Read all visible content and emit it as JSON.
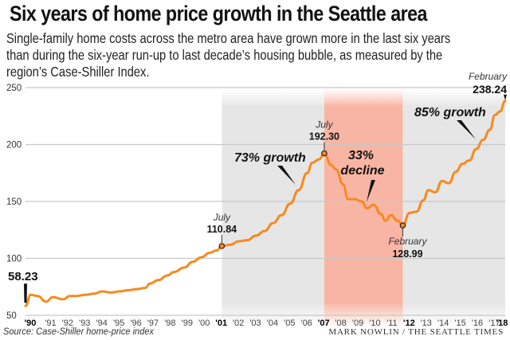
{
  "header": {
    "title": "Six years of home price growth in the Seattle area",
    "subtitle": "Single-family home costs across the metro area have grown more in the last six years than during the six-year run-up to last decade’s housing bubble, as measured by the region’s Case-Shiller Index."
  },
  "footer": {
    "source": "Source: Case-Shiller home-price index",
    "credit": "MARK NOWLIN / THE SEATTLE TIMES"
  },
  "colors": {
    "line": "#f7891f",
    "growth_shade": "#e6e6e6",
    "decline_shade": "#f9b5a4",
    "grid": "#c8c8c8"
  },
  "chart_data": {
    "type": "line",
    "title": "Six years of home price growth in the Seattle area",
    "xlabel": "",
    "ylabel": "",
    "xlim": [
      1990,
      2018.1
    ],
    "ylim": [
      50,
      250
    ],
    "grid": true,
    "yticks": [
      50,
      100,
      150,
      200,
      250
    ],
    "xticks": [
      {
        "value": 1990,
        "label": "'90",
        "bold": true
      },
      {
        "value": 1991,
        "label": "'91",
        "bold": false
      },
      {
        "value": 1992,
        "label": "'92",
        "bold": false
      },
      {
        "value": 1993,
        "label": "'93",
        "bold": false
      },
      {
        "value": 1994,
        "label": "'94",
        "bold": false
      },
      {
        "value": 1995,
        "label": "'95",
        "bold": false
      },
      {
        "value": 1996,
        "label": "'96",
        "bold": false
      },
      {
        "value": 1997,
        "label": "'97",
        "bold": false
      },
      {
        "value": 1998,
        "label": "'98",
        "bold": false
      },
      {
        "value": 1999,
        "label": "'99",
        "bold": false
      },
      {
        "value": 2000,
        "label": "'00",
        "bold": false
      },
      {
        "value": 2001,
        "label": "'01",
        "bold": true
      },
      {
        "value": 2002,
        "label": "'02",
        "bold": false
      },
      {
        "value": 2003,
        "label": "'03",
        "bold": false
      },
      {
        "value": 2004,
        "label": "'04",
        "bold": false
      },
      {
        "value": 2005,
        "label": "'05",
        "bold": false
      },
      {
        "value": 2006,
        "label": "'06",
        "bold": false
      },
      {
        "value": 2007,
        "label": "'07",
        "bold": true
      },
      {
        "value": 2008,
        "label": "'08",
        "bold": false
      },
      {
        "value": 2009,
        "label": "'09",
        "bold": false
      },
      {
        "value": 2010,
        "label": "'10",
        "bold": false
      },
      {
        "value": 2011,
        "label": "'11",
        "bold": false
      },
      {
        "value": 2012,
        "label": "'12",
        "bold": true
      },
      {
        "value": 2013,
        "label": "'13",
        "bold": false
      },
      {
        "value": 2014,
        "label": "'14",
        "bold": false
      },
      {
        "value": 2015,
        "label": "'15",
        "bold": false
      },
      {
        "value": 2016,
        "label": "'16",
        "bold": false
      },
      {
        "value": 2017,
        "label": "'17",
        "bold": false
      },
      {
        "value": 2018,
        "label": "'18",
        "bold": true
      }
    ],
    "series": [
      {
        "name": "Seattle Case-Shiller Index",
        "x": [
          1990.0,
          1990.3,
          1990.7,
          1991.2,
          1991.6,
          1992.2,
          1992.6,
          1993.0,
          1993.5,
          1994.0,
          1994.5,
          1995.0,
          1995.5,
          1996.0,
          1996.5,
          1997.0,
          1997.3,
          1997.8,
          1998.3,
          1998.7,
          1999.3,
          1999.8,
          2000.3,
          2000.8,
          2001.2,
          2001.5,
          2002.0,
          2002.5,
          2003.0,
          2003.5,
          2004.0,
          2004.5,
          2005.0,
          2005.5,
          2006.0,
          2006.5,
          2006.8,
          2007.2,
          2007.5,
          2007.9,
          2008.2,
          2008.6,
          2008.9,
          2009.3,
          2009.7,
          2010.0,
          2010.4,
          2010.8,
          2011.1,
          2011.4,
          2011.8,
          2012.1,
          2012.5,
          2012.9,
          2013.3,
          2013.6,
          2014.0,
          2014.4,
          2014.8,
          2015.2,
          2015.6,
          2016.0,
          2016.4,
          2016.8,
          2017.2,
          2017.5,
          2017.8,
          2018.1
        ],
        "values": [
          58.23,
          68,
          67,
          62,
          66,
          64,
          67,
          67,
          68,
          69,
          71,
          70,
          71,
          72,
          73,
          74,
          78,
          81,
          85,
          88,
          92,
          97,
          101,
          105,
          107,
          110.84,
          112,
          115,
          116,
          120,
          124,
          131,
          138,
          148,
          160,
          175,
          184,
          187,
          192.3,
          182,
          178,
          165,
          152,
          152,
          150,
          144,
          147,
          139,
          133,
          138,
          133,
          128.99,
          140,
          141,
          151,
          160,
          158,
          168,
          166,
          176,
          183,
          186,
          196,
          204,
          213,
          226,
          229,
          238.24
        ]
      }
    ],
    "shaded_periods": [
      {
        "name": "growth",
        "from": 2001.5,
        "to": 2007.5,
        "label": "73% growth"
      },
      {
        "name": "decline",
        "from": 2007.5,
        "to": 2012.1,
        "label": "33% decline"
      },
      {
        "name": "growth",
        "from": 2012.1,
        "to": 2018.1,
        "label": "85% growth"
      }
    ],
    "annotations": [
      {
        "id": "start",
        "x": 1990.0,
        "y": 58.23,
        "month": "",
        "value": "58.23"
      },
      {
        "id": "jul2001",
        "x": 2001.5,
        "y": 110.84,
        "month": "July",
        "value": "110.84"
      },
      {
        "id": "jul2007",
        "x": 2007.5,
        "y": 192.3,
        "month": "July",
        "value": "192.30"
      },
      {
        "id": "feb2012",
        "x": 2012.1,
        "y": 128.99,
        "month": "February",
        "value": "128.99"
      },
      {
        "id": "feb2018",
        "x": 2018.1,
        "y": 238.24,
        "month": "February",
        "value": "238.24"
      }
    ],
    "callouts": {
      "growth1": "73% growth",
      "decline_line1": "33%",
      "decline_line2": "decline",
      "growth2": "85% growth"
    }
  }
}
